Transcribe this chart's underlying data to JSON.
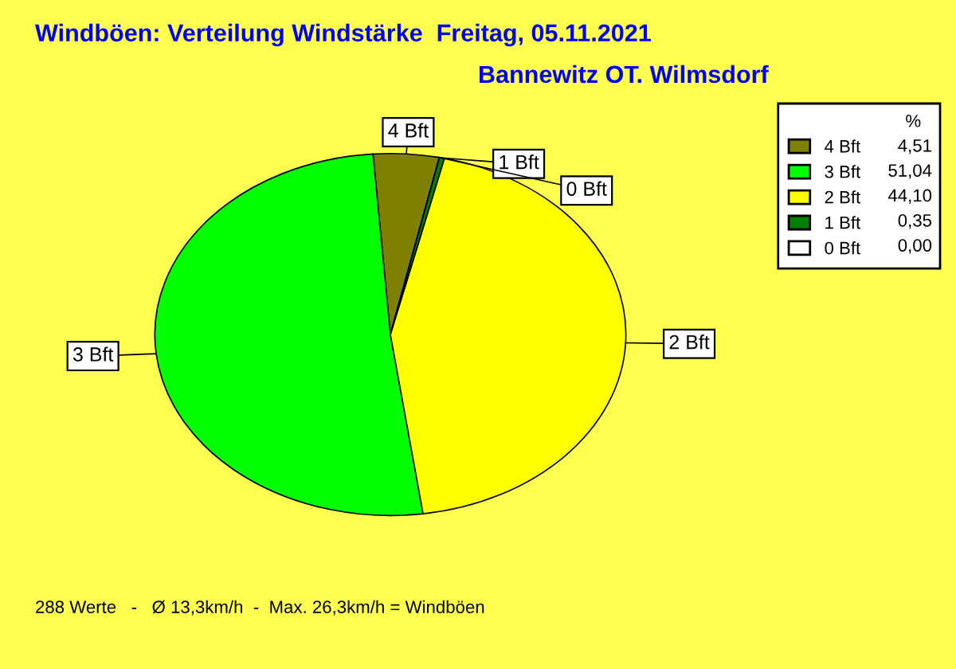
{
  "chart_data": {
    "type": "pie",
    "title": "Windböen: Verteilung Windstärke  Freitag, 05.11.2021",
    "subtitle": "Bannewitz OT. Wilmsdorf",
    "categories": [
      "4 Bft",
      "3 Bft",
      "2 Bft",
      "1 Bft",
      "0 Bft"
    ],
    "values": [
      4.51,
      51.04,
      44.1,
      0.35,
      0.0
    ],
    "value_labels": [
      "4,51",
      "51,04",
      "44,10",
      "0,35",
      "0,00"
    ],
    "colors": [
      "#808000",
      "#00ff00",
      "#ffff00",
      "#008000",
      "#ffffff"
    ],
    "legend_title": "%",
    "legend": "top right",
    "annotations": [
      "288 Werte   -   Ø 13,3km/h  -  Max. 26,3km/h = Windböen"
    ]
  }
}
